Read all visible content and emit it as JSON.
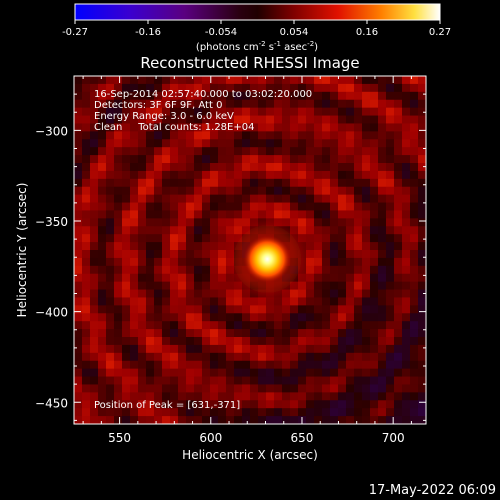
{
  "colorbar": {
    "ticks": [
      "-0.27",
      "-0.16",
      "-0.054",
      "0.054",
      "0.16",
      "0.27"
    ],
    "units_prefix": "(photons cm",
    "units_exp1": "-2",
    "units_mid": " s",
    "units_exp2": "-1",
    "units_mid2": " asec",
    "units_exp3": "-2",
    "units_suffix": ")",
    "range": [
      -0.27,
      0.27
    ]
  },
  "title": "Reconstructed RHESSI Image",
  "annotations": {
    "time": "16-Sep-2014 02:57:40.000 to 03:02:20.000",
    "detectors": "Detectors: 3F 6F 9F, Att 0",
    "energy": "Energy Range: 3.0 - 6.0 keV",
    "clean": "Clean     Total counts: 1.28E+04",
    "peak": "Position of Peak = [631,-371]"
  },
  "footer_date": "17-May-2022 06:09",
  "colors": {
    "background": "#000000",
    "axis": "#ffffff"
  },
  "chart_data": {
    "type": "heatmap",
    "title": "Reconstructed RHESSI Image",
    "xlabel": "Heliocentric X (arcsec)",
    "ylabel": "Heliocentric Y (arcsec)",
    "xlim": [
      525,
      718
    ],
    "ylim": [
      -462,
      -270
    ],
    "x_ticks": [
      550,
      600,
      650,
      700
    ],
    "y_ticks": [
      -300,
      -350,
      -400,
      -450
    ],
    "peak": [
      631,
      -371
    ],
    "colormap": "hot/blue-white",
    "value_range": [
      -0.27,
      0.27
    ]
  }
}
